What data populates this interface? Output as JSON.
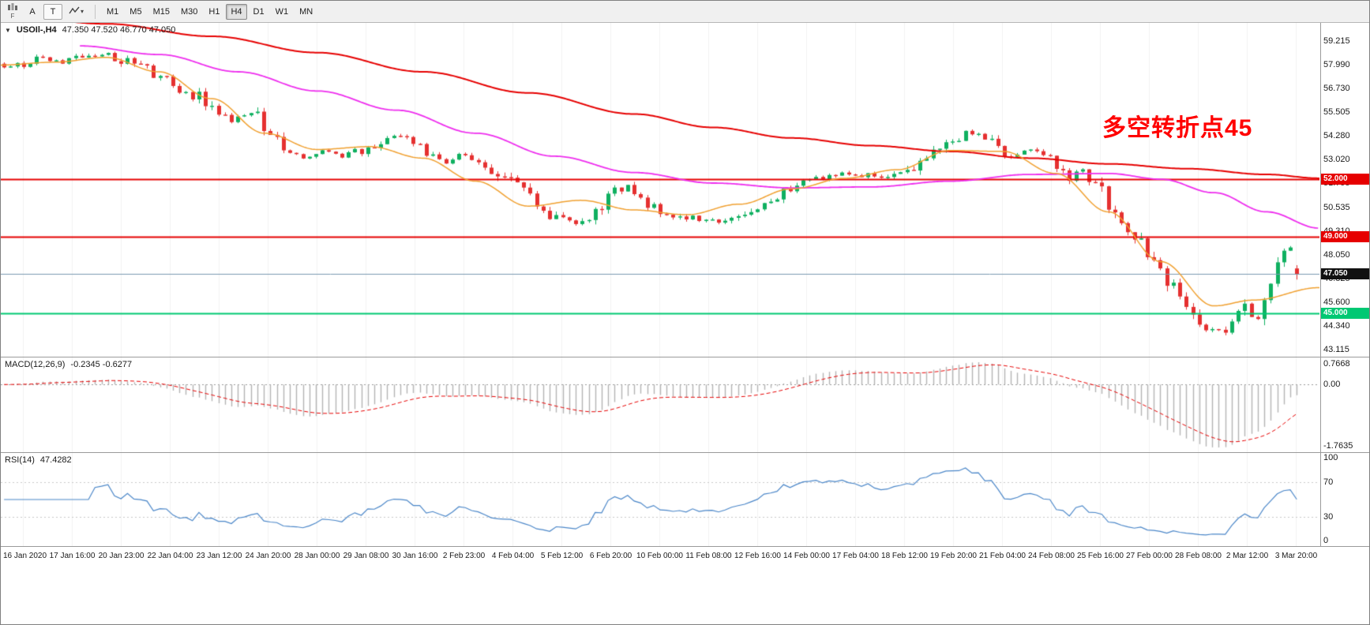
{
  "toolbar": {
    "f_label": "F",
    "a_label": "A",
    "t_label": "T",
    "timeframes": [
      {
        "label": "M1",
        "active": false
      },
      {
        "label": "M5",
        "active": false
      },
      {
        "label": "M15",
        "active": false
      },
      {
        "label": "M30",
        "active": false
      },
      {
        "label": "H1",
        "active": false
      },
      {
        "label": "H4",
        "active": true
      },
      {
        "label": "D1",
        "active": false
      },
      {
        "label": "W1",
        "active": false
      },
      {
        "label": "MN",
        "active": false
      }
    ]
  },
  "main_chart": {
    "symbol_line": "USOIl-,H4",
    "ohlc": "47.350 47.520 46.770 47.050",
    "annotation": "多空转折点45",
    "annotation_color": "#ff0000",
    "price_ticks": [
      "59.215",
      "57.990",
      "56.730",
      "55.505",
      "54.280",
      "53.020",
      "51.795",
      "50.535",
      "49.310",
      "48.050",
      "46.825",
      "45.600",
      "44.340",
      "43.115"
    ],
    "price_tags": [
      {
        "label": "52.000",
        "price": 52.0,
        "bg": "#e60000",
        "fg": "#ffffff"
      },
      {
        "label": "49.000",
        "price": 49.0,
        "bg": "#e60000",
        "fg": "#ffffff"
      },
      {
        "label": "47.050",
        "price": 47.05,
        "bg": "#111111",
        "fg": "#ffffff"
      },
      {
        "label": "45.000",
        "price": 45.0,
        "bg": "#00c873",
        "fg": "#ffffff"
      }
    ]
  },
  "macd_panel": {
    "label": "MACD(12,26,9)",
    "values": "-0.2345 -0.6277",
    "tick_top": "0.7668",
    "tick_zero": "0.00",
    "tick_bottom": "-1.7635"
  },
  "rsi_panel": {
    "label": "RSI(14)",
    "value": "47.4282",
    "tick_top": "100",
    "tick_70": "70",
    "tick_30": "30",
    "tick_bottom": "0"
  },
  "time_axis": {
    "labels": [
      "16 Jan 2020",
      "17 Jan 16:00",
      "20 Jan 23:00",
      "22 Jan 04:00",
      "23 Jan 12:00",
      "24 Jan 20:00",
      "28 Jan 00:00",
      "29 Jan 08:00",
      "30 Jan 16:00",
      "2 Feb 23:00",
      "4 Feb 04:00",
      "5 Feb 12:00",
      "6 Feb 20:00",
      "10 Feb 00:00",
      "11 Feb 08:00",
      "12 Feb 16:00",
      "14 Feb 00:00",
      "17 Feb 04:00",
      "18 Feb 12:00",
      "19 Feb 20:00",
      "21 Feb 04:00",
      "24 Feb 08:00",
      "25 Feb 16:00",
      "27 Feb 00:00",
      "28 Feb 08:00",
      "2 Mar 12:00",
      "3 Mar 20:00"
    ]
  },
  "chart_data": {
    "type": "candlestick",
    "symbol": "USOIL",
    "timeframe": "H4",
    "bars": 200,
    "price_range": [
      42.75,
      60.15
    ],
    "last_candle": {
      "open": 47.35,
      "high": 47.52,
      "low": 46.77,
      "close": 47.05
    },
    "close_waypoints": [
      [
        0,
        57.9
      ],
      [
        3,
        58.0
      ],
      [
        6,
        58.35
      ],
      [
        9,
        58.1
      ],
      [
        12,
        58.45
      ],
      [
        15,
        58.55
      ],
      [
        18,
        58.2
      ],
      [
        21,
        57.9
      ],
      [
        24,
        57.3
      ],
      [
        27,
        56.6
      ],
      [
        30,
        56.3
      ],
      [
        33,
        55.5
      ],
      [
        35,
        55.0
      ],
      [
        37,
        55.5
      ],
      [
        39,
        55.2
      ],
      [
        41,
        54.3
      ],
      [
        43,
        53.4
      ],
      [
        46,
        53.2
      ],
      [
        49,
        53.45
      ],
      [
        52,
        53.2
      ],
      [
        55,
        53.5
      ],
      [
        58,
        53.9
      ],
      [
        61,
        54.25
      ],
      [
        63,
        53.9
      ],
      [
        65,
        53.3
      ],
      [
        68,
        52.85
      ],
      [
        70,
        53.3
      ],
      [
        73,
        53.0
      ],
      [
        76,
        52.4
      ],
      [
        79,
        51.6
      ],
      [
        82,
        50.9
      ],
      [
        85,
        50.0
      ],
      [
        88,
        49.75
      ],
      [
        91,
        50.3
      ],
      [
        94,
        51.3
      ],
      [
        96,
        51.75
      ],
      [
        98,
        51.1
      ],
      [
        100,
        50.5
      ],
      [
        103,
        50.2
      ],
      [
        106,
        49.95
      ],
      [
        109,
        49.8
      ],
      [
        112,
        49.95
      ],
      [
        115,
        50.4
      ],
      [
        118,
        50.9
      ],
      [
        121,
        51.5
      ],
      [
        124,
        51.9
      ],
      [
        127,
        52.15
      ],
      [
        130,
        52.25
      ],
      [
        133,
        52.2
      ],
      [
        136,
        52.1
      ],
      [
        139,
        52.5
      ],
      [
        142,
        53.2
      ],
      [
        145,
        53.9
      ],
      [
        148,
        54.35
      ],
      [
        150,
        54.55
      ],
      [
        152,
        54.0
      ],
      [
        154,
        53.4
      ],
      [
        156,
        53.25
      ],
      [
        158,
        53.55
      ],
      [
        160,
        53.3
      ],
      [
        162,
        52.7
      ],
      [
        164,
        52.1
      ],
      [
        166,
        52.3
      ],
      [
        168,
        51.6
      ],
      [
        170,
        50.8
      ],
      [
        172,
        49.9
      ],
      [
        174,
        49.1
      ],
      [
        176,
        48.2
      ],
      [
        178,
        47.2
      ],
      [
        180,
        46.3
      ],
      [
        182,
        45.4
      ],
      [
        184,
        44.7
      ],
      [
        186,
        44.15
      ],
      [
        188,
        43.95
      ],
      [
        190,
        45.2
      ],
      [
        191,
        45.5
      ],
      [
        192,
        44.6
      ],
      [
        193,
        44.35
      ],
      [
        194,
        45.6
      ],
      [
        195,
        46.4
      ],
      [
        196,
        47.3
      ],
      [
        197,
        48.0
      ],
      [
        198,
        48.4
      ],
      [
        199,
        47.05
      ]
    ],
    "ma_red": {
      "color": "#e60000",
      "width": 2,
      "points": [
        [
          0,
          60.55
        ],
        [
          0.08,
          60.1
        ],
        [
          0.16,
          59.45
        ],
        [
          0.24,
          58.6
        ],
        [
          0.32,
          57.6
        ],
        [
          0.4,
          56.5
        ],
        [
          0.48,
          55.4
        ],
        [
          0.54,
          54.7
        ],
        [
          0.6,
          54.15
        ],
        [
          0.66,
          53.75
        ],
        [
          0.72,
          53.45
        ],
        [
          0.78,
          53.1
        ],
        [
          0.84,
          52.8
        ],
        [
          0.9,
          52.55
        ],
        [
          0.96,
          52.25
        ],
        [
          1,
          52.05
        ]
      ]
    },
    "ma_magenta": {
      "color": "#ee2dee",
      "width": 1.8,
      "points": [
        [
          0.06,
          58.95
        ],
        [
          0.12,
          58.5
        ],
        [
          0.18,
          57.6
        ],
        [
          0.24,
          56.6
        ],
        [
          0.3,
          55.6
        ],
        [
          0.36,
          54.4
        ],
        [
          0.42,
          53.2
        ],
        [
          0.48,
          52.35
        ],
        [
          0.54,
          51.8
        ],
        [
          0.6,
          51.55
        ],
        [
          0.66,
          51.6
        ],
        [
          0.72,
          51.9
        ],
        [
          0.78,
          52.25
        ],
        [
          0.84,
          52.3
        ],
        [
          0.88,
          52.0
        ],
        [
          0.92,
          51.3
        ],
        [
          0.96,
          50.3
        ],
        [
          1,
          49.45
        ]
      ]
    },
    "ma_orange": {
      "color": "#f0a030",
      "width": 1.5,
      "points": [
        [
          0,
          57.95
        ],
        [
          0.04,
          58.1
        ],
        [
          0.08,
          58.35
        ],
        [
          0.12,
          57.6
        ],
        [
          0.16,
          56.2
        ],
        [
          0.2,
          54.4
        ],
        [
          0.24,
          53.55
        ],
        [
          0.28,
          53.7
        ],
        [
          0.32,
          53.1
        ],
        [
          0.36,
          51.9
        ],
        [
          0.4,
          50.6
        ],
        [
          0.44,
          50.9
        ],
        [
          0.48,
          50.4
        ],
        [
          0.52,
          50.15
        ],
        [
          0.56,
          50.7
        ],
        [
          0.6,
          51.5
        ],
        [
          0.64,
          52.05
        ],
        [
          0.68,
          52.5
        ],
        [
          0.72,
          53.5
        ],
        [
          0.76,
          53.45
        ],
        [
          0.8,
          52.3
        ],
        [
          0.84,
          50.3
        ],
        [
          0.88,
          47.7
        ],
        [
          0.92,
          45.4
        ],
        [
          0.95,
          45.7
        ],
        [
          1,
          46.35
        ]
      ]
    },
    "hlines": [
      {
        "price": 52.0,
        "color": "#e60000",
        "width": 2
      },
      {
        "price": 49.0,
        "color": "#e60000",
        "width": 2
      },
      {
        "price": 45.0,
        "color": "#00c873",
        "width": 2
      },
      {
        "price": 47.05,
        "color": "#7a9ab0",
        "width": 1
      }
    ],
    "up_color": "#0fb060",
    "down_color": "#e53030",
    "macd": {
      "fast": 12,
      "slow": 26,
      "signal": 9,
      "histogram_color": "#b4b4b4",
      "signal_color": "#e60000"
    },
    "rsi": {
      "period": 14,
      "color": "#4a86c8",
      "levels": [
        70,
        30
      ]
    }
  }
}
